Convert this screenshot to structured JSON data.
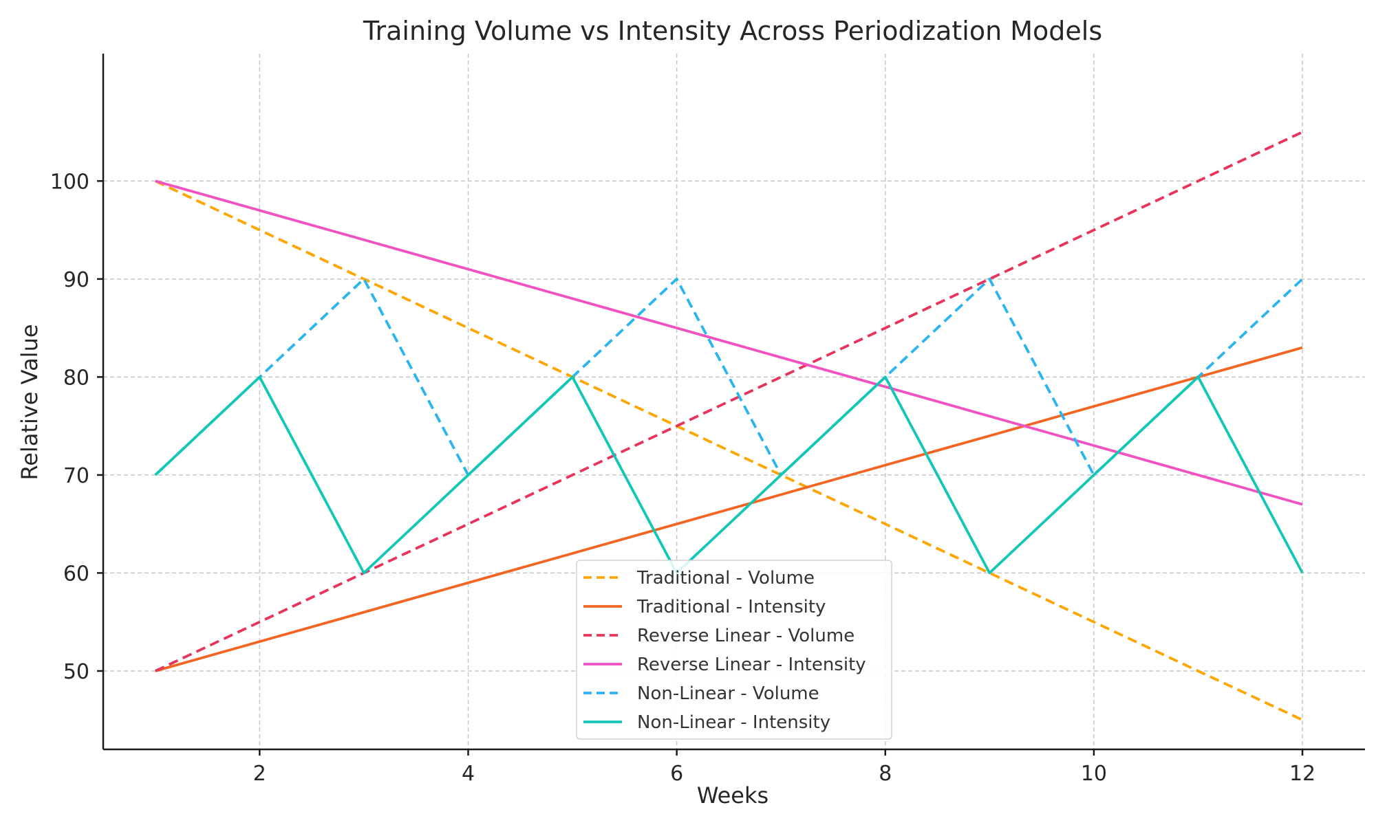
{
  "chart_data": {
    "type": "line",
    "title": "Training Volume vs Intensity Across Periodization Models",
    "xlabel": "Weeks",
    "ylabel": "Relative Value",
    "x": [
      1,
      2,
      3,
      4,
      5,
      6,
      7,
      8,
      9,
      10,
      11,
      12
    ],
    "xlim": [
      0.5,
      12.6
    ],
    "ylim": [
      42,
      113
    ],
    "xticks": [
      2,
      4,
      6,
      8,
      10,
      12
    ],
    "yticks": [
      50,
      60,
      70,
      80,
      90,
      100
    ],
    "grid": true,
    "legend_position": "bottom-center",
    "series": [
      {
        "name": "Traditional - Volume",
        "color": "#FFA500",
        "style": "dashed",
        "values": [
          100,
          95,
          90,
          85,
          80,
          75,
          70,
          65,
          60,
          55,
          50,
          45
        ]
      },
      {
        "name": "Traditional - Intensity",
        "color": "#F26522",
        "style": "solid",
        "values": [
          50,
          53,
          56,
          59,
          62,
          65,
          68,
          71,
          74,
          77,
          80,
          83
        ]
      },
      {
        "name": "Reverse Linear - Volume",
        "color": "#E8335A",
        "style": "dashed",
        "values": [
          50,
          55,
          60,
          65,
          70,
          75,
          80,
          85,
          90,
          95,
          100,
          105
        ]
      },
      {
        "name": "Reverse Linear - Intensity",
        "color": "#F052C2",
        "style": "solid",
        "values": [
          100,
          97,
          94,
          91,
          88,
          85,
          82,
          79,
          76,
          73,
          70,
          67
        ]
      },
      {
        "name": "Non-Linear - Volume",
        "color": "#2BB5F0",
        "style": "dashed",
        "values": [
          70,
          80,
          90,
          70,
          80,
          90,
          70,
          80,
          90,
          70,
          80,
          90
        ]
      },
      {
        "name": "Non-Linear - Intensity",
        "color": "#12C7B8",
        "style": "solid",
        "values": [
          70,
          80,
          60,
          70,
          80,
          60,
          70,
          80,
          60,
          70,
          80,
          60
        ]
      }
    ]
  }
}
